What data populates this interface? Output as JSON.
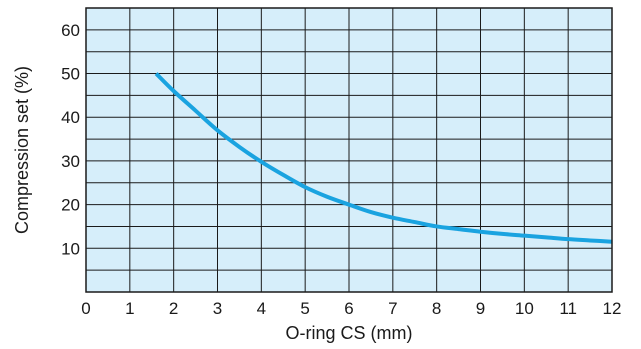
{
  "chart_data": {
    "type": "line",
    "xlabel": "O-ring CS (mm)",
    "ylabel": "Compression set (%)",
    "xlim": [
      0,
      12
    ],
    "ylim": [
      0,
      65
    ],
    "x_ticks": [
      "0",
      "1",
      "2",
      "3",
      "4",
      "5",
      "6",
      "7",
      "8",
      "9",
      "10",
      "11",
      "12"
    ],
    "y_ticks": [
      "10",
      "20",
      "30",
      "40",
      "50",
      "60"
    ],
    "grid": true,
    "plot_background": "#d6eefa",
    "grid_color": "#1a1a1a",
    "series": [
      {
        "color": "#1aa3e0",
        "x": [
          1.6,
          2,
          2.5,
          3,
          3.5,
          4,
          4.5,
          5,
          5.5,
          6,
          6.5,
          7,
          7.5,
          8,
          8.5,
          9,
          9.5,
          10,
          10.5,
          11,
          11.5,
          12
        ],
        "y": [
          50,
          46,
          41.5,
          37,
          33.2,
          29.8,
          26.8,
          24,
          21.8,
          20,
          18.3,
          17,
          16,
          15,
          14.4,
          13.8,
          13.3,
          12.9,
          12.5,
          12.1,
          11.8,
          11.5
        ]
      }
    ]
  }
}
